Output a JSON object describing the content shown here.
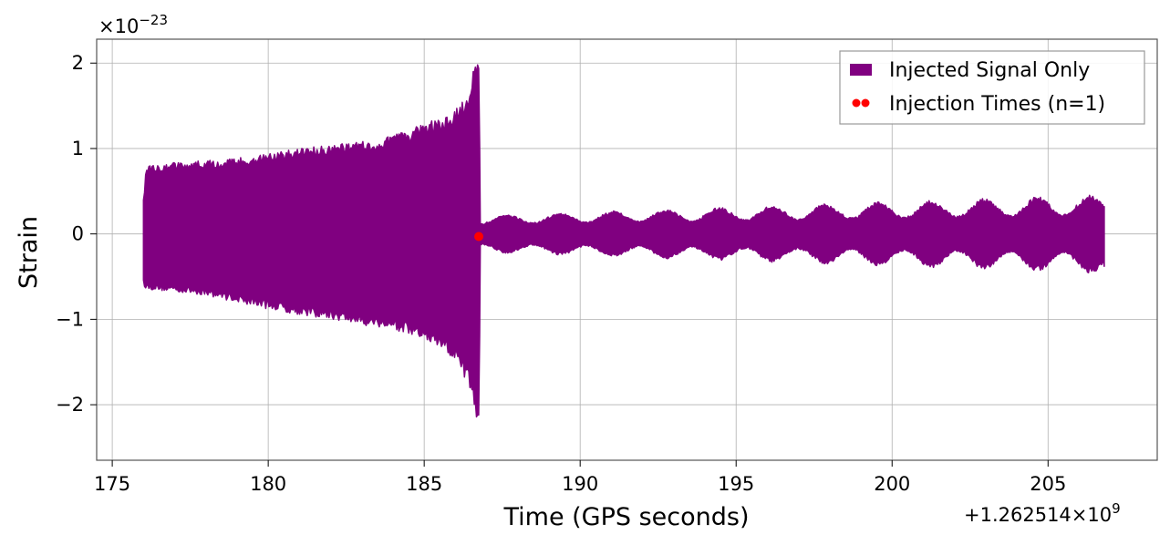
{
  "chart_data": {
    "type": "line",
    "xlabel": "Time (GPS seconds)",
    "ylabel": "Strain",
    "x_offset_text": "+1.262514×10",
    "x_offset_exp": "9",
    "y_scale_text": "×10",
    "y_scale_exp": "−23",
    "xlim": [
      174.5,
      208.5
    ],
    "ylim": [
      -2.65,
      2.28
    ],
    "x_ticks": [
      {
        "value": 175,
        "label": "175"
      },
      {
        "value": 180,
        "label": "180"
      },
      {
        "value": 185,
        "label": "185"
      },
      {
        "value": 190,
        "label": "190"
      },
      {
        "value": 195,
        "label": "195"
      },
      {
        "value": 200,
        "label": "200"
      },
      {
        "value": 205,
        "label": "205"
      }
    ],
    "y_ticks": [
      {
        "value": -2,
        "label": "−2"
      },
      {
        "value": -1,
        "label": "−1"
      },
      {
        "value": 0,
        "label": "0"
      },
      {
        "value": 1,
        "label": "1"
      },
      {
        "value": 2,
        "label": "2"
      }
    ],
    "grid": true,
    "legend_position": "top-right",
    "series": [
      {
        "name": "Injected Signal Only",
        "kind": "filled-oscillation",
        "color": "#800080",
        "envelope": {
          "t": [
            176.0,
            176.1,
            177.0,
            178.0,
            179.0,
            180.0,
            181.0,
            182.0,
            183.0,
            184.0,
            185.0,
            185.5,
            186.0,
            186.3,
            186.5,
            186.65,
            186.75,
            186.8
          ],
          "upper": [
            0.4,
            0.82,
            0.84,
            0.86,
            0.89,
            0.94,
            1.0,
            1.05,
            1.08,
            1.15,
            1.3,
            1.35,
            1.45,
            1.6,
            1.8,
            2.05,
            2.02,
            0.6
          ],
          "lower": [
            -0.6,
            -0.65,
            -0.68,
            -0.72,
            -0.8,
            -0.88,
            -0.95,
            -1.0,
            -1.07,
            -1.12,
            -1.25,
            -1.35,
            -1.5,
            -1.7,
            -1.85,
            -2.15,
            -2.4,
            -0.5
          ]
        },
        "ringdown": {
          "t_start": 186.8,
          "t_end": 206.8,
          "amp_start": 0.18,
          "amp_end": 0.45,
          "modulation_period": 1.7,
          "modulation_depth": 0.55,
          "end_upper": 0.32,
          "end_lower": -0.38
        }
      },
      {
        "name": "Injection Times (n=1)",
        "kind": "scatter",
        "color": "#ff0000",
        "points": [
          {
            "x": 186.75,
            "y": -0.03
          }
        ]
      }
    ]
  }
}
